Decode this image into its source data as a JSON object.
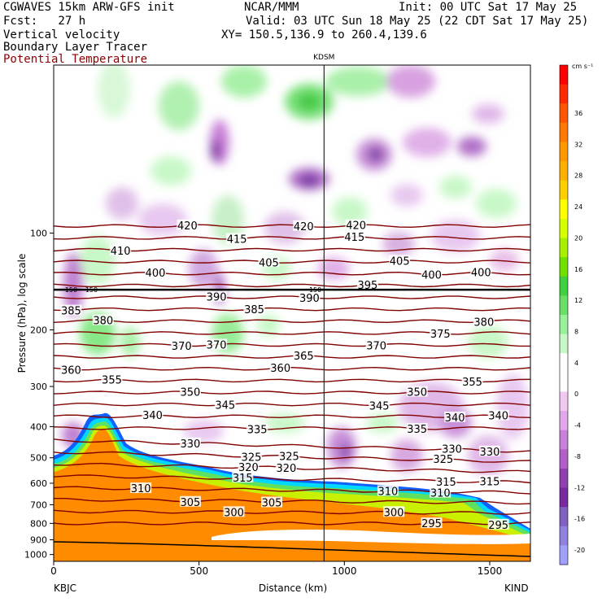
{
  "header": {
    "model": "CGWAVES 15km ARW-GFS init",
    "org": "NCAR/MMM",
    "init": "Init: 00 UTC Sat 17 May 25",
    "fcst": "Fcst:   27 h",
    "valid": "Valid: 03 UTC Sun 18 May 25 (22 CDT Sat 17 May 25)",
    "field1": "Vertical velocity",
    "xy": "XY= 150.5,136.9 to 260.4,139.6",
    "field2": "Boundary Layer Tracer",
    "field3": "Potential Temperature"
  },
  "chart_data": {
    "type": "heatmap",
    "xlabel": "Distance (km)",
    "ylabel": "Pressure (hPa), log scale",
    "xlim": [
      0,
      1640
    ],
    "ylim": [
      1050,
      30
    ],
    "y_scale": "log",
    "x_ticks": [
      0,
      500,
      1000,
      1500
    ],
    "y_ticks": [
      100,
      200,
      300,
      400,
      500,
      600,
      700,
      800,
      900,
      1000
    ],
    "x_start_label": "KBJC",
    "x_end_label": "KIND",
    "marker": {
      "label": "KDSM",
      "x": 930
    },
    "colorbar": {
      "unit": "cm s⁻¹",
      "ticks": [
        36,
        32,
        28,
        24,
        20,
        16,
        12,
        8,
        4,
        0,
        -4,
        -8,
        -12,
        -16,
        -20
      ],
      "colors": [
        "#ff0000",
        "#ff2a00",
        "#ff5500",
        "#ff7800",
        "#ff9800",
        "#ffb000",
        "#ffd000",
        "#ffff00",
        "#d8ff00",
        "#a8f000",
        "#70e000",
        "#40d040",
        "#68e068",
        "#98f098",
        "#c8f8c8",
        "#ffffff",
        "#ffffff",
        "#f0c8f0",
        "#e0a8e8",
        "#c880d8",
        "#b060c8",
        "#9040b0",
        "#7828a0",
        "#8060c0",
        "#9080e0",
        "#a0a0ff"
      ]
    },
    "contours": [
      {
        "value": 420,
        "labels_x": [
          460,
          860,
          1040
        ]
      },
      {
        "value": 415,
        "labels_x": [
          630,
          1035
        ]
      },
      {
        "value": 410,
        "labels_x": [
          230
        ]
      },
      {
        "value": 405,
        "labels_x": [
          740,
          1190
        ]
      },
      {
        "value": 400,
        "labels_x": [
          350,
          1300,
          1470
        ]
      },
      {
        "value": 395,
        "labels_x": [
          1080
        ]
      },
      {
        "value": 390,
        "labels_x": [
          560,
          880
        ]
      },
      {
        "value": 385,
        "labels_x": [
          60,
          690
        ]
      },
      {
        "value": 380,
        "labels_x": [
          170,
          1480
        ]
      },
      {
        "value": 375,
        "labels_x": [
          1330
        ]
      },
      {
        "value": 370,
        "labels_x": [
          440,
          560,
          1110
        ]
      },
      {
        "value": 365,
        "labels_x": [
          860
        ]
      },
      {
        "value": 360,
        "labels_x": [
          60,
          780
        ]
      },
      {
        "value": 355,
        "labels_x": [
          200,
          1440
        ]
      },
      {
        "value": 350,
        "labels_x": [
          470,
          1250
        ]
      },
      {
        "value": 345,
        "labels_x": [
          590,
          1120
        ]
      },
      {
        "value": 340,
        "labels_x": [
          340,
          1380,
          1530
        ]
      },
      {
        "value": 335,
        "labels_x": [
          700,
          1250
        ]
      },
      {
        "value": 330,
        "labels_x": [
          470,
          1370,
          1500
        ]
      },
      {
        "value": 325,
        "labels_x": [
          680,
          810,
          1340
        ]
      },
      {
        "value": 320,
        "labels_x": [
          670,
          800
        ]
      },
      {
        "value": 315,
        "labels_x": [
          650,
          1350,
          1500
        ]
      },
      {
        "value": 310,
        "labels_x": [
          300,
          1150,
          1330
        ]
      },
      {
        "value": 305,
        "labels_x": [
          470,
          750
        ]
      },
      {
        "value": 300,
        "labels_x": [
          620,
          1170
        ]
      },
      {
        "value": 295,
        "labels_x": [
          1300,
          1530
        ]
      }
    ],
    "tropopause_label": "150"
  }
}
